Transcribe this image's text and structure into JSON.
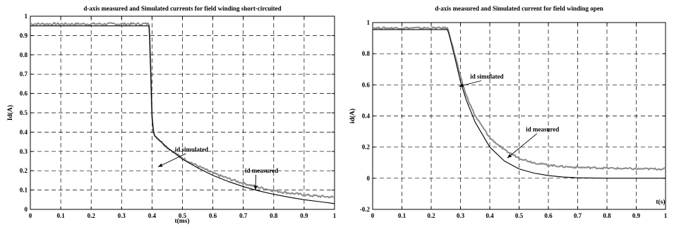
{
  "chart_data": [
    {
      "type": "line",
      "title": "d-axis measured and Simulated currents for field winding short-circuited",
      "xlabel": "t(ms)",
      "ylabel": "Id(A)",
      "xlim": [
        0,
        1
      ],
      "ylim": [
        0,
        1
      ],
      "xticks": [
        "0",
        "0.1",
        "0.2",
        "0.3",
        "0.4",
        "0.5",
        "0.6",
        "0.7",
        "0.8",
        "0.9",
        "1"
      ],
      "yticks": [
        "0",
        "0.1",
        "0.2",
        "0.3",
        "0.4",
        "0.5",
        "0.6",
        "0.7",
        "0.8",
        "0.9",
        "1"
      ],
      "grid": true,
      "series": [
        {
          "name": "id measured",
          "color": "#8a8a8a",
          "points": [
            [
              0,
              0.96
            ],
            [
              0.39,
              0.96
            ],
            [
              0.392,
              0.9
            ],
            [
              0.396,
              0.7
            ],
            [
              0.4,
              0.48
            ],
            [
              0.405,
              0.4
            ],
            [
              0.41,
              0.38
            ],
            [
              0.45,
              0.32
            ],
            [
              0.5,
              0.265
            ],
            [
              0.55,
              0.225
            ],
            [
              0.6,
              0.188
            ],
            [
              0.65,
              0.16
            ],
            [
              0.7,
              0.135
            ],
            [
              0.75,
              0.115
            ],
            [
              0.8,
              0.097
            ],
            [
              0.85,
              0.085
            ],
            [
              0.9,
              0.075
            ],
            [
              0.95,
              0.068
            ],
            [
              1.0,
              0.063
            ]
          ]
        },
        {
          "name": "id simulated",
          "color": "#000000",
          "points": [
            [
              0,
              0.95
            ],
            [
              0.39,
              0.95
            ],
            [
              0.392,
              0.9
            ],
            [
              0.396,
              0.7
            ],
            [
              0.4,
              0.48
            ],
            [
              0.405,
              0.4
            ],
            [
              0.41,
              0.38
            ],
            [
              0.45,
              0.32
            ],
            [
              0.5,
              0.26
            ],
            [
              0.55,
              0.215
            ],
            [
              0.6,
              0.176
            ],
            [
              0.65,
              0.145
            ],
            [
              0.7,
              0.118
            ],
            [
              0.75,
              0.096
            ],
            [
              0.8,
              0.078
            ],
            [
              0.85,
              0.063
            ],
            [
              0.9,
              0.05
            ],
            [
              0.95,
              0.04
            ],
            [
              1.0,
              0.03
            ]
          ]
        }
      ],
      "annotations": [
        {
          "text": "id simulated",
          "label_at": [
            0.53,
            0.3
          ],
          "arrow_to": [
            0.42,
            0.22
          ]
        },
        {
          "text": "id measured",
          "label_at": [
            0.76,
            0.19
          ],
          "arrow_to": [
            0.74,
            0.1
          ]
        }
      ]
    },
    {
      "type": "line",
      "title": "d-axis measured  and Simulated current for field winding open",
      "xlabel": "t(s)",
      "ylabel": "id(A)",
      "xlim": [
        0,
        1
      ],
      "ylim": [
        -0.2,
        1
      ],
      "xticks": [
        "0",
        "0.1",
        "0.2",
        "0.3",
        "0.4",
        "0.5",
        "0.6",
        "0.7",
        "0.8",
        "0.9",
        "1"
      ],
      "yticks": [
        "-0.2",
        "0",
        "0.2",
        "0.4",
        "0.6",
        "0.8",
        "1"
      ],
      "grid": true,
      "series": [
        {
          "name": "id measured",
          "color": "#8a8a8a",
          "points": [
            [
              0,
              0.965
            ],
            [
              0.255,
              0.965
            ],
            [
              0.26,
              0.94
            ],
            [
              0.28,
              0.8
            ],
            [
              0.3,
              0.65
            ],
            [
              0.32,
              0.53
            ],
            [
              0.35,
              0.4
            ],
            [
              0.4,
              0.26
            ],
            [
              0.45,
              0.18
            ],
            [
              0.5,
              0.13
            ],
            [
              0.55,
              0.1
            ],
            [
              0.6,
              0.085
            ],
            [
              0.65,
              0.075
            ],
            [
              0.7,
              0.07
            ],
            [
              0.8,
              0.065
            ],
            [
              0.9,
              0.06
            ],
            [
              1.0,
              0.06
            ]
          ]
        },
        {
          "name": "id simulated",
          "color": "#000000",
          "points": [
            [
              0,
              0.955
            ],
            [
              0.255,
              0.955
            ],
            [
              0.26,
              0.93
            ],
            [
              0.28,
              0.78
            ],
            [
              0.3,
              0.62
            ],
            [
              0.32,
              0.5
            ],
            [
              0.35,
              0.36
            ],
            [
              0.4,
              0.2
            ],
            [
              0.45,
              0.11
            ],
            [
              0.5,
              0.06
            ],
            [
              0.55,
              0.033
            ],
            [
              0.6,
              0.017
            ],
            [
              0.65,
              0.008
            ],
            [
              0.7,
              0.003
            ],
            [
              0.8,
              0.0
            ],
            [
              0.9,
              0.0
            ],
            [
              1.0,
              0.0
            ]
          ]
        }
      ],
      "annotations": [
        {
          "text": "id simulated",
          "label_at": [
            0.39,
            0.64
          ],
          "arrow_to": [
            0.295,
            0.59
          ]
        },
        {
          "text": "id measured",
          "label_at": [
            0.58,
            0.3
          ],
          "arrow_to": [
            0.46,
            0.13
          ]
        }
      ]
    }
  ]
}
